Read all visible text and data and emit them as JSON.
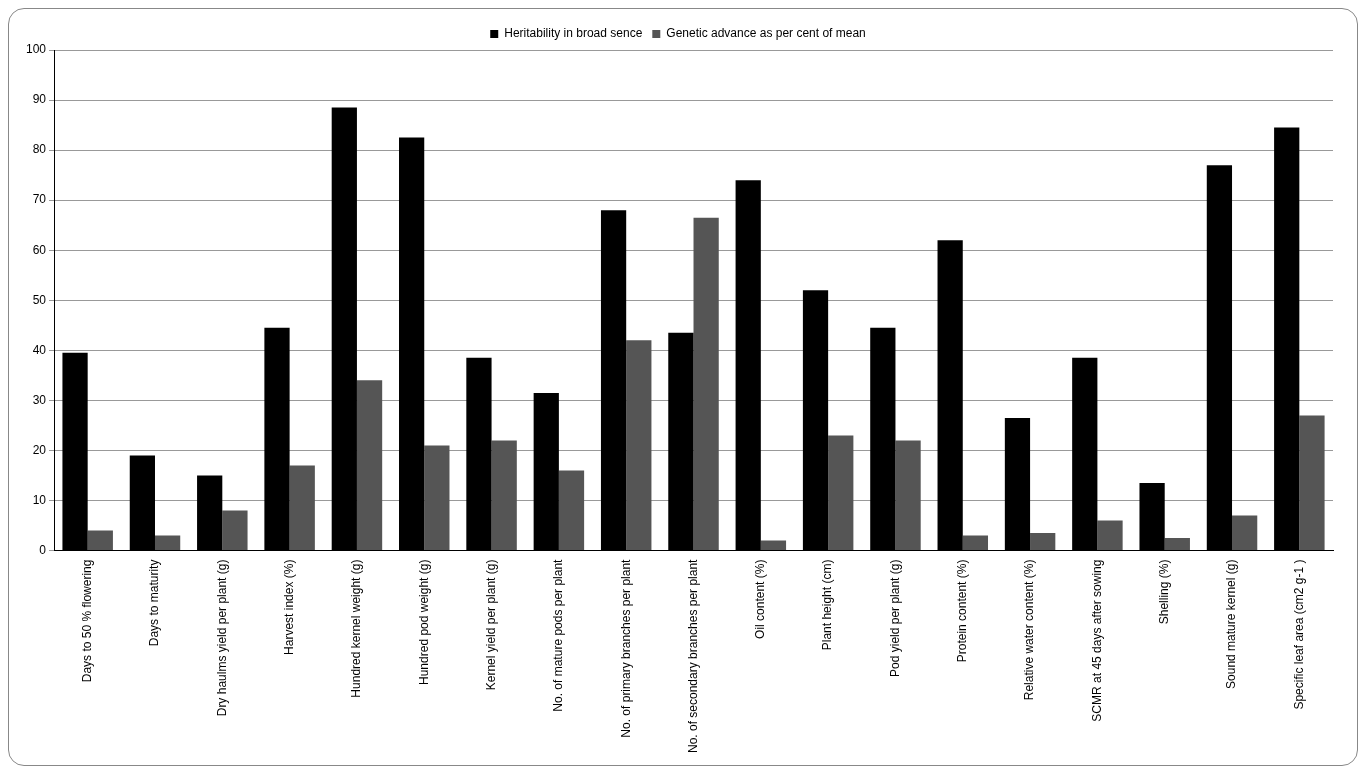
{
  "chart_data": {
    "type": "bar",
    "categories": [
      "Days to 50 % flowering",
      "Days to maturity",
      "Dry haulms yield per plant (g)",
      "Harvest index (%)",
      "Hundred kernel weight (g)",
      "Hundred pod weight (g)",
      "Kernel yield per plant (g)",
      "No. of mature pods per plant",
      "No. of primary branches per plant",
      "No. of secondary branches per plant",
      "Oil content (%)",
      "Plant height (cm)",
      "Pod yield per plant (g)",
      "Protein content (%)",
      "Relative water content (%)",
      "SCMR at 45 days after sowing",
      "Shelling (%)",
      "Sound mature kernel (g)",
      "Specific leaf area (cm2 g-1 )"
    ],
    "series": [
      {
        "name": "Heritability in broad sence",
        "color": "#000000",
        "values": [
          39.5,
          19,
          15,
          44.5,
          88.5,
          82.5,
          38.5,
          31.5,
          68,
          43.5,
          74,
          52,
          44.5,
          62,
          26.5,
          38.5,
          13.5,
          77,
          84.5
        ]
      },
      {
        "name": "Genetic advance as per cent of mean",
        "color": "#555555",
        "values": [
          4,
          3,
          8,
          17,
          34,
          21,
          22,
          16,
          42,
          66.5,
          2,
          23,
          22,
          3,
          3.5,
          6,
          2.5,
          7,
          27
        ]
      }
    ],
    "ylim": [
      0,
      100
    ],
    "yticks": [
      0,
      10,
      20,
      30,
      40,
      50,
      60,
      70,
      80,
      90,
      100
    ],
    "grid": "y",
    "legend": "top"
  }
}
